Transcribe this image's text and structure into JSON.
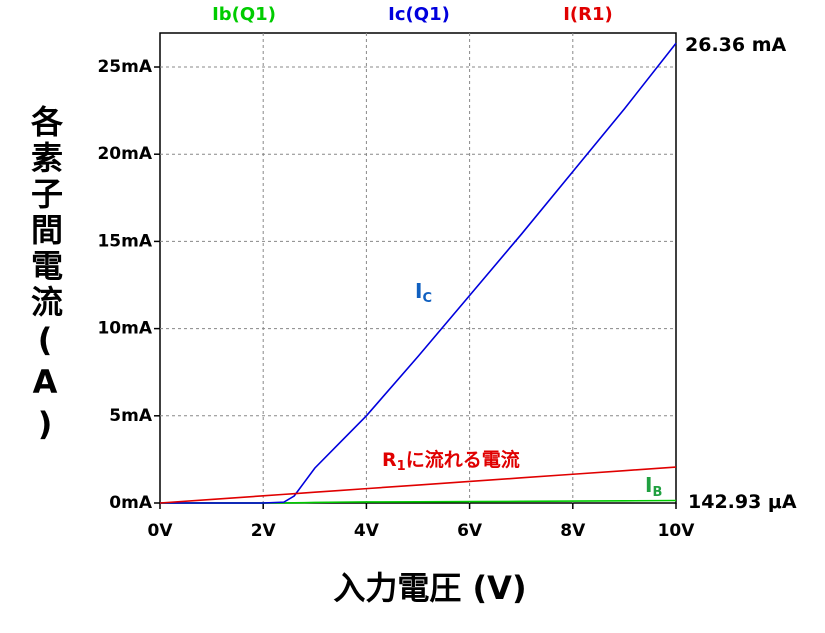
{
  "chart_data": {
    "type": "line",
    "xlabel": "入力電圧 (V)",
    "ylabel": "各素子間電流(A)",
    "x": [
      0,
      1,
      2,
      2.4,
      2.6,
      2.8,
      3,
      3.5,
      4,
      5,
      6,
      7,
      8,
      9,
      10
    ],
    "series": [
      {
        "name": "Ib(Q1)",
        "color": "#00cc00",
        "values": [
          0,
          0,
          0,
          0.001,
          0.008,
          0.02,
          0.03,
          0.05,
          0.06,
          0.07,
          0.08,
          0.095,
          0.11,
          0.125,
          0.14293
        ]
      },
      {
        "name": "Ic(Q1)",
        "color": "#0000dd",
        "values": [
          0,
          0,
          0,
          0.05,
          0.4,
          1.2,
          2.0,
          3.5,
          5.0,
          8.4,
          11.9,
          15.4,
          19.0,
          22.6,
          26.36
        ]
      },
      {
        "name": "I(R1)",
        "color": "#e00000",
        "values": [
          0,
          0.206,
          0.412,
          0.494,
          0.536,
          0.577,
          0.618,
          0.721,
          0.824,
          1.03,
          1.236,
          1.442,
          1.648,
          1.854,
          2.06
        ]
      }
    ],
    "xlim": [
      0,
      10
    ],
    "xticks": [
      {
        "value": 0,
        "label": "0V"
      },
      {
        "value": 2,
        "label": "2V"
      },
      {
        "value": 4,
        "label": "4V"
      },
      {
        "value": 6,
        "label": "6V"
      },
      {
        "value": 8,
        "label": "8V"
      },
      {
        "value": 10,
        "label": "10V"
      }
    ],
    "ylim": [
      0,
      26.95
    ],
    "yticks": [
      {
        "value": 0,
        "label": "0mA"
      },
      {
        "value": 5,
        "label": "5mA"
      },
      {
        "value": 10,
        "label": "10mA"
      },
      {
        "value": 15,
        "label": "15mA"
      },
      {
        "value": 20,
        "label": "20mA"
      },
      {
        "value": 25,
        "label": "25mA"
      }
    ],
    "grid": true,
    "annotations": [
      {
        "text": "26.36 mA",
        "color": "#000000"
      },
      {
        "text": "142.93 μA",
        "color": "#000000"
      },
      {
        "text": "I",
        "sub": "C",
        "color": "#1060c0"
      },
      {
        "text": "R",
        "sub": "1",
        "rest": "に流れる電流",
        "color": "#e00000"
      },
      {
        "text": "I",
        "sub": "B",
        "color": "#20a040"
      }
    ]
  }
}
